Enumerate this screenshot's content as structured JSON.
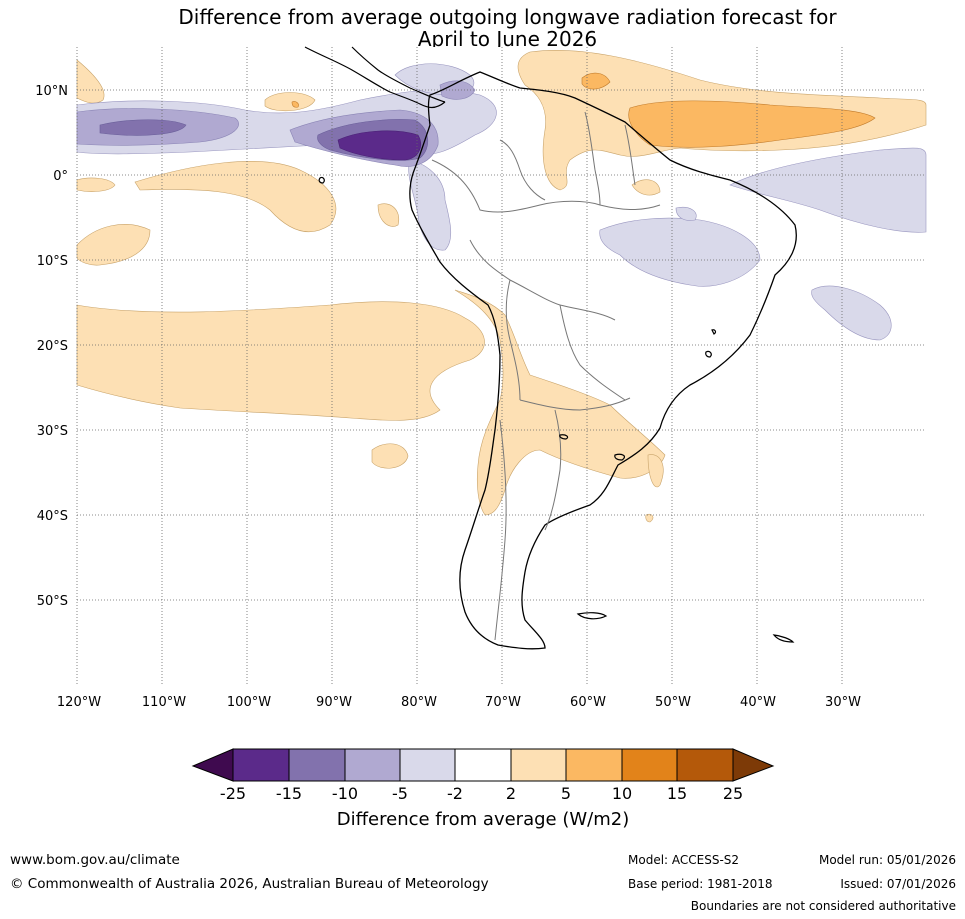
{
  "title": {
    "line1": "Difference from average outgoing longwave radiation forecast for",
    "line2": "April to June 2026"
  },
  "map": {
    "lat_labels": [
      "10°N",
      "0°",
      "10°S",
      "20°S",
      "30°S",
      "40°S",
      "50°S"
    ],
    "lon_labels": [
      "120°W",
      "110°W",
      "100°W",
      "90°W",
      "80°W",
      "70°W",
      "60°W",
      "50°W",
      "40°W",
      "30°W"
    ]
  },
  "legend": {
    "ticks": [
      "-25",
      "-15",
      "-10",
      "-5",
      "-2",
      "2",
      "5",
      "10",
      "15",
      "25"
    ],
    "label": "Difference from average (W/m2)",
    "colors": [
      "#3f0a4f",
      "#5b2a8a",
      "#8272ad",
      "#b0a9d1",
      "#d9d9ea",
      "#ffffff",
      "#fde0b4",
      "#fbb862",
      "#e2831a",
      "#b4590a",
      "#7d3a07"
    ]
  },
  "footer": {
    "website": "www.bom.gov.au/climate",
    "copyright": "© Commonwealth of Australia 2026, Australian Bureau of Meteorology",
    "model": "Model: ACCESS-S2",
    "base_period": "Base period: 1981-2018",
    "model_run": "Model run: 05/01/2026",
    "issued": "Issued: 07/01/2026",
    "boundaries_note": "Boundaries are not considered authoritative"
  }
}
